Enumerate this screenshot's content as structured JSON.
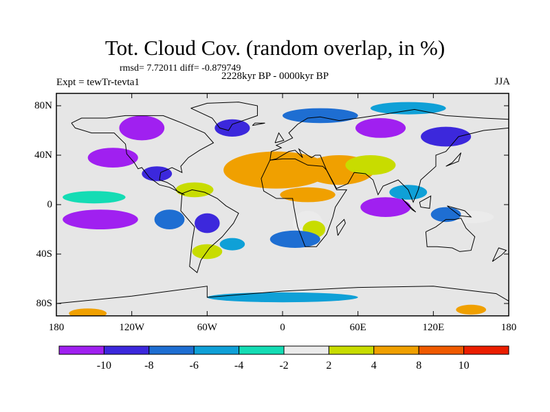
{
  "header": {
    "title": "Tot. Cloud Cov. (random overlap, in %)",
    "stats": "rmsd= 7.72011 diff= -0.879749",
    "experiment": "Expt = tewTr-tevta1",
    "period": "2228kyr BP - 0000kyr BP",
    "season": "JJA"
  },
  "map": {
    "projection": "cylindrical equidistant",
    "lat_range": [
      -90,
      90
    ],
    "lon_range": [
      -180,
      180
    ],
    "y_ticks": [
      {
        "lat": 80,
        "label": "80N"
      },
      {
        "lat": 40,
        "label": "40N"
      },
      {
        "lat": 0,
        "label": "0"
      },
      {
        "lat": -40,
        "label": "40S"
      },
      {
        "lat": -80,
        "label": "80S"
      }
    ],
    "x_ticks": [
      {
        "lon": -180,
        "label": "180"
      },
      {
        "lon": -120,
        "label": "120W"
      },
      {
        "lon": -60,
        "label": "60W"
      },
      {
        "lon": 0,
        "label": "0"
      },
      {
        "lon": 60,
        "label": "60E"
      },
      {
        "lon": 120,
        "label": "120E"
      },
      {
        "lon": 180,
        "label": "180"
      }
    ],
    "background_color": "#e6e6e6",
    "regions": [
      {
        "lon": -5,
        "lat": 28,
        "rx": 42,
        "ry": 15,
        "level": 7
      },
      {
        "lon": 45,
        "lat": 28,
        "rx": 28,
        "ry": 12,
        "level": 7
      },
      {
        "lon": 70,
        "lat": 32,
        "rx": 20,
        "ry": 8,
        "level": 6
      },
      {
        "lon": 20,
        "lat": 8,
        "rx": 22,
        "ry": 6,
        "level": 7
      },
      {
        "lon": 20,
        "lat": -15,
        "rx": 12,
        "ry": 10,
        "level": 5
      },
      {
        "lon": 25,
        "lat": -20,
        "rx": 9,
        "ry": 7,
        "level": 6
      },
      {
        "lon": -70,
        "lat": 12,
        "rx": 15,
        "ry": 6,
        "level": 6
      },
      {
        "lon": -60,
        "lat": -38,
        "rx": 12,
        "ry": 6,
        "level": 6
      },
      {
        "lon": 150,
        "lat": -10,
        "rx": 18,
        "ry": 5,
        "level": 5
      },
      {
        "lon": -155,
        "lat": -88,
        "rx": 15,
        "ry": 4,
        "level": 7
      },
      {
        "lon": 150,
        "lat": -85,
        "rx": 12,
        "ry": 4,
        "level": 7
      },
      {
        "lon": -150,
        "lat": 6,
        "rx": 25,
        "ry": 5,
        "level": 4
      },
      {
        "lon": -145,
        "lat": -12,
        "rx": 30,
        "ry": 8,
        "level": 0
      },
      {
        "lon": -135,
        "lat": 38,
        "rx": 20,
        "ry": 8,
        "level": 0
      },
      {
        "lon": -112,
        "lat": 62,
        "rx": 18,
        "ry": 10,
        "level": 0
      },
      {
        "lon": -100,
        "lat": 25,
        "rx": 12,
        "ry": 6,
        "level": 1
      },
      {
        "lon": -40,
        "lat": 62,
        "rx": 14,
        "ry": 7,
        "level": 1
      },
      {
        "lon": 30,
        "lat": 72,
        "rx": 30,
        "ry": 6,
        "level": 2
      },
      {
        "lon": 78,
        "lat": 62,
        "rx": 20,
        "ry": 8,
        "level": 0
      },
      {
        "lon": 130,
        "lat": 55,
        "rx": 20,
        "ry": 8,
        "level": 1
      },
      {
        "lon": 100,
        "lat": 78,
        "rx": 30,
        "ry": 5,
        "level": 3
      },
      {
        "lon": 82,
        "lat": -2,
        "rx": 20,
        "ry": 8,
        "level": 0
      },
      {
        "lon": 130,
        "lat": -8,
        "rx": 12,
        "ry": 6,
        "level": 2
      },
      {
        "lon": -60,
        "lat": -15,
        "rx": 10,
        "ry": 8,
        "level": 1
      },
      {
        "lon": -40,
        "lat": -32,
        "rx": 10,
        "ry": 5,
        "level": 3
      },
      {
        "lon": 10,
        "lat": -28,
        "rx": 20,
        "ry": 7,
        "level": 2
      },
      {
        "lon": -90,
        "lat": -12,
        "rx": 12,
        "ry": 8,
        "level": 2
      },
      {
        "lon": 100,
        "lat": 10,
        "rx": 15,
        "ry": 6,
        "level": 3
      },
      {
        "lon": 0,
        "lat": -75,
        "rx": 60,
        "ry": 4,
        "level": 3
      }
    ],
    "coastlines": [
      [
        [
          -168,
          66
        ],
        [
          -160,
          70
        ],
        [
          -140,
          70
        ],
        [
          -125,
          72
        ],
        [
          -95,
          72
        ],
        [
          -80,
          66
        ],
        [
          -62,
          58
        ],
        [
          -55,
          50
        ],
        [
          -66,
          44
        ],
        [
          -75,
          38
        ],
        [
          -81,
          31
        ],
        [
          -80,
          26
        ],
        [
          -88,
          30
        ],
        [
          -97,
          26
        ],
        [
          -98,
          20
        ],
        [
          -92,
          18
        ],
        [
          -87,
          15
        ],
        [
          -83,
          10
        ],
        [
          -78,
          8
        ],
        [
          -90,
          14
        ],
        [
          -98,
          16
        ],
        [
          -106,
          22
        ],
        [
          -112,
          30
        ],
        [
          -115,
          29
        ],
        [
          -118,
          34
        ],
        [
          -124,
          41
        ],
        [
          -125,
          49
        ],
        [
          -134,
          58
        ],
        [
          -152,
          58
        ],
        [
          -165,
          62
        ],
        [
          -168,
          66
        ]
      ],
      [
        [
          -73,
          78
        ],
        [
          -60,
          82
        ],
        [
          -35,
          83
        ],
        [
          -20,
          80
        ],
        [
          -20,
          72
        ],
        [
          -40,
          65
        ],
        [
          -43,
          60
        ],
        [
          -50,
          62
        ],
        [
          -56,
          70
        ],
        [
          -73,
          78
        ]
      ],
      [
        [
          -80,
          9
        ],
        [
          -72,
          12
        ],
        [
          -62,
          10
        ],
        [
          -52,
          5
        ],
        [
          -45,
          -1
        ],
        [
          -35,
          -7
        ],
        [
          -39,
          -15
        ],
        [
          -48,
          -26
        ],
        [
          -58,
          -35
        ],
        [
          -65,
          -45
        ],
        [
          -68,
          -55
        ],
        [
          -74,
          -50
        ],
        [
          -72,
          -30
        ],
        [
          -70,
          -18
        ],
        [
          -81,
          -5
        ],
        [
          -80,
          9
        ]
      ],
      [
        [
          -10,
          36
        ],
        [
          0,
          37
        ],
        [
          10,
          37
        ],
        [
          20,
          32
        ],
        [
          32,
          31
        ],
        [
          35,
          28
        ],
        [
          43,
          12
        ],
        [
          51,
          12
        ],
        [
          42,
          -2
        ],
        [
          40,
          -10
        ],
        [
          35,
          -24
        ],
        [
          27,
          -34
        ],
        [
          18,
          -34
        ],
        [
          12,
          -18
        ],
        [
          9,
          -2
        ],
        [
          8,
          5
        ],
        [
          -5,
          5
        ],
        [
          -15,
          11
        ],
        [
          -17,
          21
        ],
        [
          -10,
          36
        ]
      ],
      [
        [
          -10,
          36
        ],
        [
          -9,
          43
        ],
        [
          -1,
          46
        ],
        [
          -5,
          48
        ],
        [
          2,
          51
        ],
        [
          8,
          54
        ],
        [
          5,
          58
        ],
        [
          12,
          65
        ],
        [
          20,
          70
        ],
        [
          30,
          71
        ],
        [
          45,
          68
        ],
        [
          60,
          70
        ],
        [
          80,
          73
        ],
        [
          105,
          77
        ],
        [
          130,
          72
        ],
        [
          160,
          70
        ],
        [
          180,
          69
        ],
        [
          180,
          62
        ],
        [
          160,
          60
        ],
        [
          140,
          55
        ],
        [
          130,
          43
        ],
        [
          122,
          40
        ],
        [
          122,
          31
        ],
        [
          110,
          20
        ],
        [
          108,
          12
        ],
        [
          104,
          2
        ],
        [
          100,
          12
        ],
        [
          92,
          20
        ],
        [
          80,
          15
        ],
        [
          76,
          8
        ],
        [
          72,
          20
        ],
        [
          66,
          25
        ],
        [
          57,
          26
        ],
        [
          52,
          17
        ],
        [
          43,
          13
        ],
        [
          35,
          28
        ],
        [
          30,
          40
        ],
        [
          26,
          40
        ],
        [
          23,
          38
        ],
        [
          20,
          40
        ],
        [
          13,
          45
        ],
        [
          16,
          38
        ],
        [
          10,
          44
        ],
        [
          5,
          43
        ],
        [
          -5,
          37
        ],
        [
          -10,
          36
        ]
      ],
      [
        [
          114,
          -22
        ],
        [
          122,
          -18
        ],
        [
          130,
          -12
        ],
        [
          137,
          -12
        ],
        [
          142,
          -11
        ],
        [
          146,
          -19
        ],
        [
          153,
          -26
        ],
        [
          150,
          -37
        ],
        [
          141,
          -38
        ],
        [
          135,
          -35
        ],
        [
          123,
          -34
        ],
        [
          115,
          -34
        ],
        [
          114,
          -22
        ]
      ],
      [
        [
          -180,
          -80
        ],
        [
          -120,
          -74
        ],
        [
          -60,
          -66
        ],
        [
          -60,
          -75
        ],
        [
          0,
          -70
        ],
        [
          60,
          -67
        ],
        [
          120,
          -66
        ],
        [
          170,
          -72
        ],
        [
          180,
          -78
        ]
      ],
      [
        [
          44,
          -25
        ],
        [
          50,
          -15
        ],
        [
          49,
          -12
        ],
        [
          43,
          -18
        ],
        [
          44,
          -25
        ]
      ],
      [
        [
          -6,
          50
        ],
        [
          -3,
          58
        ],
        [
          1,
          52
        ],
        [
          -6,
          50
        ]
      ],
      [
        [
          130,
          31
        ],
        [
          140,
          35
        ],
        [
          142,
          42
        ],
        [
          135,
          34
        ],
        [
          130,
          31
        ]
      ],
      [
        [
          95,
          5
        ],
        [
          106,
          -6
        ],
        [
          103,
          -4
        ],
        [
          95,
          5
        ]
      ],
      [
        [
          109,
          2
        ],
        [
          118,
          7
        ],
        [
          117,
          -3
        ],
        [
          110,
          -2
        ],
        [
          109,
          2
        ]
      ],
      [
        [
          131,
          -1
        ],
        [
          145,
          -5
        ],
        [
          150,
          -10
        ],
        [
          141,
          -9
        ],
        [
          131,
          -1
        ]
      ],
      [
        [
          167,
          -46
        ],
        [
          174,
          -41
        ],
        [
          178,
          -37
        ],
        [
          172,
          -35
        ],
        [
          167,
          -46
        ]
      ],
      [
        [
          -24,
          64
        ],
        [
          -14,
          66
        ],
        [
          -22,
          66
        ],
        [
          -24,
          64
        ]
      ]
    ]
  },
  "colorbar": {
    "colors": [
      "#a020f0",
      "#3c28dc",
      "#1e6ed2",
      "#0fa0d7",
      "#14dcb4",
      "#ebebeb",
      "#c8dc00",
      "#f0a000",
      "#f05a00",
      "#eb1e00"
    ],
    "labels": [
      "-10",
      "-8",
      "-6",
      "-4",
      "-2",
      "2",
      "4",
      "8",
      "10"
    ]
  }
}
